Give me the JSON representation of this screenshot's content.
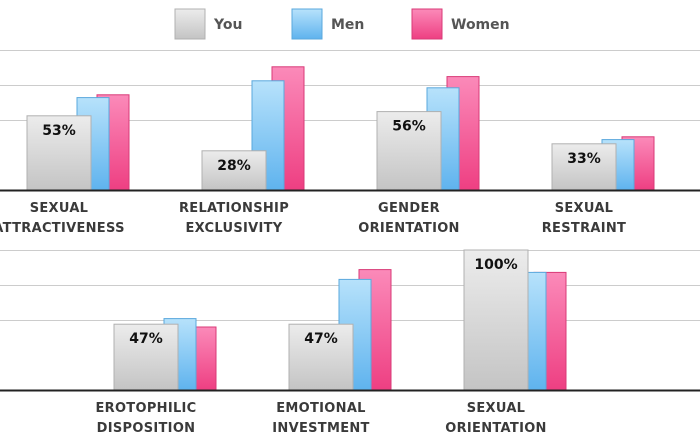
{
  "colors": {
    "you": "#d8d8d8",
    "men": "#7cc6f4",
    "women": "#f2518f",
    "grid": "#cccccc",
    "baseline": "#222222"
  },
  "legend": [
    {
      "key": "you",
      "label": "You"
    },
    {
      "key": "men",
      "label": "Men"
    },
    {
      "key": "women",
      "label": "Women"
    }
  ],
  "chart_data": [
    {
      "type": "bar",
      "categories": [
        "SEXUAL ATTRACTIVENESS",
        "RELATIONSHIP EXCLUSIVITY",
        "GENDER ORIENTATION",
        "SEXUAL RESTRAINT"
      ],
      "category_lines": [
        [
          "SEXUAL",
          "ATTRACTIVENESS"
        ],
        [
          "RELATIONSHIP",
          "EXCLUSIVITY"
        ],
        [
          "GENDER",
          "ORIENTATION"
        ],
        [
          "SEXUAL",
          "RESTRAINT"
        ]
      ],
      "ylim": [
        0,
        100
      ],
      "grid": true,
      "series": [
        {
          "name": "You",
          "values": [
            53,
            28,
            56,
            33
          ],
          "labels": [
            "53%",
            "28%",
            "56%",
            "33%"
          ]
        },
        {
          "name": "Men",
          "values": [
            66,
            78,
            73,
            36
          ]
        },
        {
          "name": "Women",
          "values": [
            68,
            88,
            81,
            38
          ]
        }
      ]
    },
    {
      "type": "bar",
      "categories": [
        "EROTOPHILIC DISPOSITION",
        "EMOTIONAL INVESTMENT",
        "SEXUAL ORIENTATION"
      ],
      "category_lines": [
        [
          "EROTOPHILIC",
          "DISPOSITION"
        ],
        [
          "EMOTIONAL",
          "INVESTMENT"
        ],
        [
          "SEXUAL",
          "ORIENTATION"
        ]
      ],
      "ylim": [
        0,
        100
      ],
      "grid": true,
      "series": [
        {
          "name": "You",
          "values": [
            47,
            47,
            100
          ],
          "labels": [
            "47%",
            "47%",
            "100%"
          ]
        },
        {
          "name": "Men",
          "values": [
            51,
            79,
            84
          ]
        },
        {
          "name": "Women",
          "values": [
            45,
            86,
            84
          ]
        }
      ]
    }
  ]
}
